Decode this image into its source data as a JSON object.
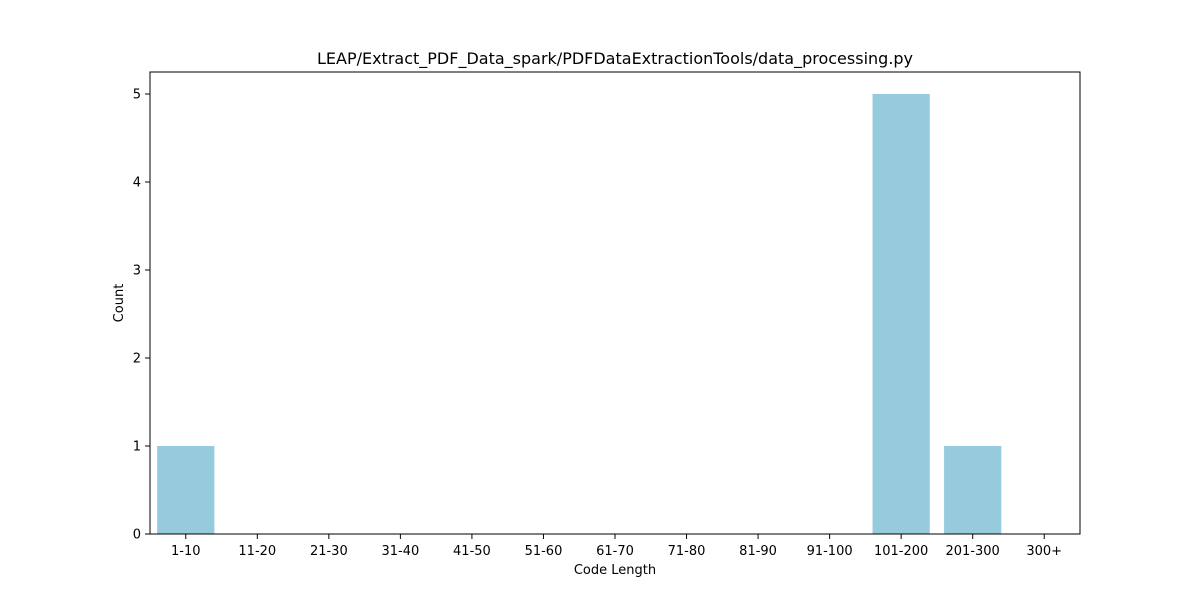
{
  "chart_data": {
    "type": "bar",
    "title": "LEAP/Extract_PDF_Data_spark/PDFDataExtractionTools/data_processing.py",
    "xlabel": "Code Length",
    "ylabel": "Count",
    "categories": [
      "1-10",
      "11-20",
      "21-30",
      "31-40",
      "41-50",
      "51-60",
      "61-70",
      "71-80",
      "81-90",
      "91-100",
      "101-200",
      "201-300",
      "300+"
    ],
    "values": [
      1,
      0,
      0,
      0,
      0,
      0,
      0,
      0,
      0,
      0,
      5,
      1,
      0
    ],
    "ylim": [
      0,
      5.25
    ],
    "yticks": [
      0,
      1,
      2,
      3,
      4,
      5
    ],
    "grid": false,
    "colors": {
      "bar": "#96cadd",
      "axis": "#000000"
    }
  }
}
